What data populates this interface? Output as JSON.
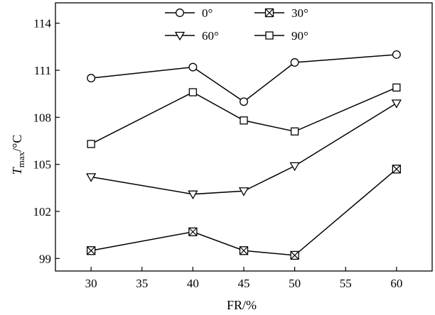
{
  "chart_data": {
    "type": "line",
    "xlabel": "FR/%",
    "ylabel": {
      "main": "T",
      "sub": "max",
      "unit": "/°C"
    },
    "x": [
      30,
      40,
      45,
      50,
      60
    ],
    "xticks": [
      "30",
      "35",
      "40",
      "45",
      "50",
      "55",
      "60"
    ],
    "xtick_values": [
      30,
      35,
      40,
      45,
      50,
      55,
      60
    ],
    "yticks": [
      "99",
      "102",
      "105",
      "108",
      "111",
      "114"
    ],
    "ytick_values": [
      99,
      102,
      105,
      108,
      111,
      114
    ],
    "xlim": [
      26.5,
      63.5
    ],
    "ylim": [
      98.2,
      115.3
    ],
    "grid": false,
    "legend_position": "top",
    "series": [
      {
        "name": "0°",
        "marker": "circle",
        "values": [
          110.5,
          111.2,
          109.0,
          111.5,
          112.0
        ]
      },
      {
        "name": "30°",
        "marker": "boxed-x",
        "values": [
          99.5,
          100.7,
          99.5,
          99.2,
          104.7
        ]
      },
      {
        "name": "60°",
        "marker": "triangle-down",
        "values": [
          104.2,
          103.1,
          103.3,
          104.9,
          108.9
        ]
      },
      {
        "name": "90°",
        "marker": "square",
        "values": [
          106.3,
          109.6,
          107.8,
          107.1,
          109.9
        ]
      }
    ]
  }
}
